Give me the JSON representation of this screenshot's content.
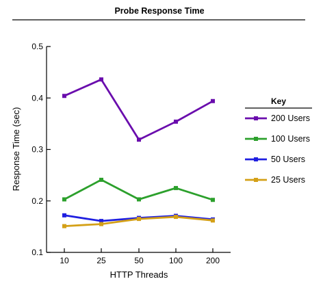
{
  "chart_data": {
    "type": "line",
    "title": "Probe Response Time",
    "xlabel": "HTTP Threads",
    "ylabel": "Response Time (sec)",
    "categories": [
      "10",
      "25",
      "50",
      "100",
      "200"
    ],
    "ylim": [
      0.1,
      0.5
    ],
    "yticks": [
      "0.1",
      "0.2",
      "0.3",
      "0.4",
      "0.5"
    ],
    "ytick_values": [
      0.1,
      0.2,
      0.3,
      0.4,
      0.5
    ],
    "grid": false,
    "legend": {
      "title": "Key",
      "placement": "right"
    },
    "series": [
      {
        "name": "200 Users",
        "color": "#6a0dad",
        "values": [
          0.404,
          0.436,
          0.319,
          0.354,
          0.394
        ]
      },
      {
        "name": "100 Users",
        "color": "#2ca02c",
        "values": [
          0.203,
          0.241,
          0.203,
          0.225,
          0.202
        ]
      },
      {
        "name": "50 Users",
        "color": "#1f1fe0",
        "values": [
          0.172,
          0.161,
          0.167,
          0.171,
          0.164
        ]
      },
      {
        "name": "25 Users",
        "color": "#d4a017",
        "values": [
          0.151,
          0.155,
          0.165,
          0.169,
          0.162
        ]
      }
    ]
  }
}
